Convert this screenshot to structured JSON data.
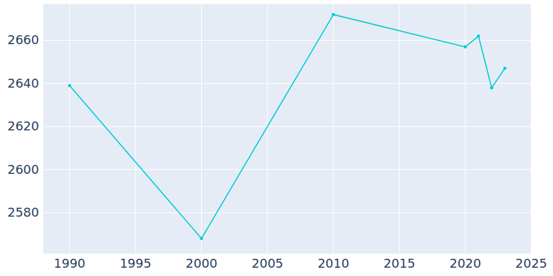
{
  "chart_data": {
    "type": "line",
    "x": [
      1990,
      2000,
      2010,
      2020,
      2021,
      2022,
      2023
    ],
    "values": [
      2639,
      2568,
      2672,
      2657,
      2662,
      2638,
      2647
    ],
    "color": "#00ccd3",
    "marker": "circle",
    "xlim": [
      1988,
      2025
    ],
    "xticks": [
      1990,
      1995,
      2000,
      2005,
      2010,
      2015,
      2020,
      2025
    ],
    "ylim": [
      2561,
      2677
    ],
    "yticks": [
      2580,
      2600,
      2620,
      2640,
      2660
    ],
    "grid": true
  }
}
